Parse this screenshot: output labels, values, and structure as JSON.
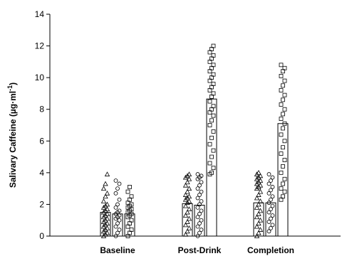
{
  "chart_data": {
    "type": "bar",
    "title": "",
    "xlabel": "",
    "ylabel": "Salivary Caffeine (µg·ml",
    "ylabel_sup": "-1",
    "ylabel_close": ")",
    "ylim": [
      0,
      14
    ],
    "yticks": [
      "0",
      "2",
      "4",
      "6",
      "8",
      "10",
      "12",
      "14"
    ],
    "categories": [
      "Baseline",
      "Post-Drink",
      "Completion"
    ],
    "grid": false,
    "legend": "none",
    "series": [
      {
        "marker": "triangle",
        "values": [
          1.5,
          2.05,
          2.1
        ],
        "points": [
          [
            0.0,
            0.1,
            0.2,
            0.3,
            0.4,
            0.5,
            0.6,
            0.7,
            0.8,
            0.9,
            1.0,
            1.1,
            1.2,
            1.3,
            1.4,
            1.5,
            1.6,
            1.7,
            1.8,
            1.9,
            2.0,
            2.2,
            2.5,
            2.7,
            3.0,
            3.3,
            3.9
          ],
          [
            0.1,
            0.3,
            0.5,
            0.7,
            0.9,
            1.1,
            1.3,
            1.5,
            1.7,
            1.9,
            2.1,
            2.2,
            2.3,
            2.4,
            2.5,
            2.6,
            2.8,
            3.0,
            3.2,
            3.4,
            3.6,
            3.7,
            3.8,
            3.9
          ],
          [
            0.0,
            0.2,
            0.4,
            0.6,
            0.8,
            1.0,
            1.2,
            1.4,
            1.6,
            1.8,
            2.0,
            2.2,
            2.4,
            2.6,
            2.8,
            3.0,
            3.1,
            3.2,
            3.3,
            3.4,
            3.5,
            3.6,
            3.7,
            3.8,
            3.9,
            4.0
          ]
        ]
      },
      {
        "marker": "circle",
        "values": [
          1.4,
          1.95,
          2.1
        ],
        "points": [
          [
            0.0,
            0.2,
            0.4,
            0.6,
            0.8,
            1.0,
            1.1,
            1.2,
            1.3,
            1.4,
            1.5,
            1.6,
            1.8,
            2.0,
            2.3,
            2.7,
            3.0,
            3.3,
            3.5
          ],
          [
            0.0,
            0.2,
            0.4,
            0.6,
            0.8,
            1.0,
            1.2,
            1.4,
            1.6,
            1.8,
            2.0,
            2.2,
            2.4,
            2.6,
            2.8,
            3.0,
            3.2,
            3.4,
            3.6,
            3.7,
            3.8,
            3.9
          ],
          [
            0.3,
            0.5,
            0.7,
            0.9,
            1.1,
            1.3,
            1.5,
            1.7,
            1.9,
            2.1,
            2.3,
            2.5,
            2.7,
            2.9,
            3.1,
            3.3,
            3.5,
            3.7,
            3.9
          ]
        ]
      },
      {
        "marker": "square",
        "values": [
          1.4,
          8.65,
          7.1
        ],
        "points": [
          [
            0.0,
            0.2,
            0.4,
            0.6,
            0.8,
            1.0,
            1.2,
            1.3,
            1.4,
            1.5,
            1.6,
            1.7,
            1.8,
            1.9,
            2.0,
            2.1,
            2.3,
            2.5,
            2.8,
            3.1
          ],
          [
            3.9,
            4.0,
            4.3,
            4.6,
            5.0,
            5.4,
            5.8,
            6.2,
            6.6,
            7.0,
            7.3,
            7.6,
            7.8,
            8.0,
            8.2,
            8.5,
            8.8,
            9.0,
            9.2,
            9.4,
            9.6,
            9.8,
            10.0,
            10.2,
            10.4,
            10.6,
            10.8,
            11.0,
            11.2,
            11.4,
            11.6,
            11.8,
            12.0
          ],
          [
            2.3,
            2.5,
            2.8,
            3.0,
            3.3,
            3.6,
            4.0,
            4.4,
            4.8,
            5.2,
            5.6,
            6.0,
            6.4,
            6.8,
            7.1,
            7.4,
            7.7,
            8.0,
            8.3,
            8.6,
            8.9,
            9.2,
            9.5,
            9.8,
            10.1,
            10.4,
            10.6,
            10.8
          ]
        ]
      }
    ]
  }
}
